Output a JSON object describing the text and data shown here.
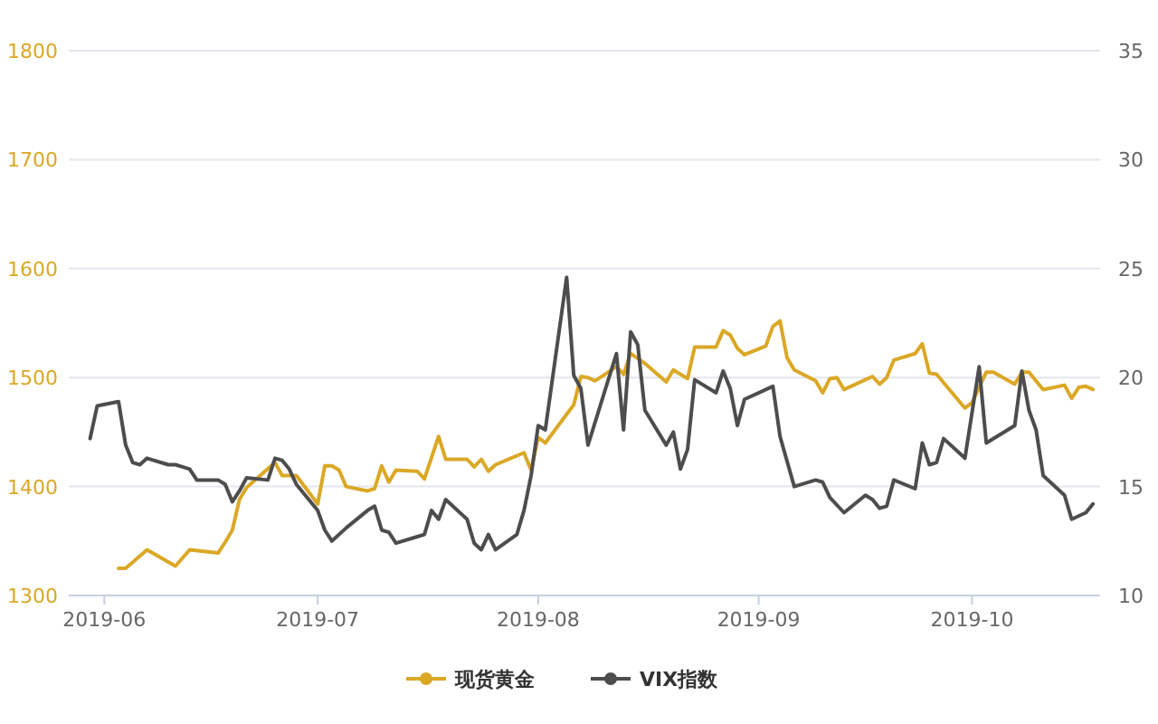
{
  "chart_data": {
    "type": "line",
    "xlim": [
      "2019-05-27",
      "2019-10-19"
    ],
    "xticks": [
      "2019-06",
      "2019-07",
      "2019-08",
      "2019-09",
      "2019-10"
    ],
    "ylim": [
      1300,
      1800
    ],
    "yticks": [
      1300,
      1400,
      1500,
      1600,
      1700,
      1800
    ],
    "y2lim": [
      10,
      35
    ],
    "y2ticks": [
      10,
      15,
      20,
      25,
      30,
      35
    ],
    "grid": "y",
    "legend": "bottom",
    "series": [
      {
        "name": "现货黄金",
        "color": "#dba826",
        "x": [
          "2019-06-03",
          "2019-06-04",
          "2019-06-07",
          "2019-06-11",
          "2019-06-13",
          "2019-06-17",
          "2019-06-18",
          "2019-06-19",
          "2019-06-20",
          "2019-06-21",
          "2019-06-25",
          "2019-06-26",
          "2019-06-28",
          "2019-07-01",
          "2019-07-02",
          "2019-07-03",
          "2019-07-04",
          "2019-07-05",
          "2019-07-08",
          "2019-07-09",
          "2019-07-10",
          "2019-07-11",
          "2019-07-12",
          "2019-07-15",
          "2019-07-16",
          "2019-07-18",
          "2019-07-19",
          "2019-07-22",
          "2019-07-23",
          "2019-07-24",
          "2019-07-25",
          "2019-07-26",
          "2019-07-30",
          "2019-07-31",
          "2019-08-01",
          "2019-08-02",
          "2019-08-06",
          "2019-08-07",
          "2019-08-08",
          "2019-08-09",
          "2019-08-12",
          "2019-08-13",
          "2019-08-14",
          "2019-08-16",
          "2019-08-19",
          "2019-08-20",
          "2019-08-22",
          "2019-08-23",
          "2019-08-26",
          "2019-08-27",
          "2019-08-28",
          "2019-08-29",
          "2019-08-30",
          "2019-09-02",
          "2019-09-03",
          "2019-09-04",
          "2019-09-05",
          "2019-09-06",
          "2019-09-09",
          "2019-09-10",
          "2019-09-11",
          "2019-09-12",
          "2019-09-13",
          "2019-09-17",
          "2019-09-18",
          "2019-09-19",
          "2019-09-20",
          "2019-09-23",
          "2019-09-24",
          "2019-09-25",
          "2019-09-26",
          "2019-09-30",
          "2019-10-01",
          "2019-10-03",
          "2019-10-04",
          "2019-10-07",
          "2019-10-08",
          "2019-10-09",
          "2019-10-11",
          "2019-10-14",
          "2019-10-15",
          "2019-10-16",
          "2019-10-17",
          "2019-10-18"
        ],
        "values": [
          1325,
          1325,
          1342,
          1327,
          1342,
          1339,
          1349,
          1360,
          1388,
          1399,
          1422,
          1410,
          1410,
          1384,
          1419,
          1419,
          1415,
          1400,
          1396,
          1398,
          1419,
          1404,
          1415,
          1414,
          1407,
          1446,
          1425,
          1425,
          1418,
          1425,
          1414,
          1420,
          1431,
          1415,
          1445,
          1440,
          1475,
          1501,
          1500,
          1497,
          1510,
          1503,
          1522,
          1513,
          1496,
          1507,
          1499,
          1528,
          1528,
          1543,
          1539,
          1527,
          1521,
          1529,
          1547,
          1552,
          1518,
          1507,
          1497,
          1486,
          1499,
          1500,
          1489,
          1501,
          1494,
          1500,
          1516,
          1522,
          1531,
          1504,
          1503,
          1472,
          1477,
          1505,
          1505,
          1494,
          1505,
          1505,
          1489,
          1493,
          1481,
          1491,
          1492,
          1489
        ]
      },
      {
        "name": "VIX指数",
        "color": "#4d4d4d",
        "axis": "y2",
        "x": [
          "2019-05-30",
          "2019-05-31",
          "2019-06-03",
          "2019-06-04",
          "2019-06-05",
          "2019-06-06",
          "2019-06-07",
          "2019-06-10",
          "2019-06-11",
          "2019-06-12",
          "2019-06-13",
          "2019-06-14",
          "2019-06-17",
          "2019-06-18",
          "2019-06-19",
          "2019-06-20",
          "2019-06-21",
          "2019-06-24",
          "2019-06-25",
          "2019-06-26",
          "2019-06-27",
          "2019-06-28",
          "2019-07-01",
          "2019-07-02",
          "2019-07-03",
          "2019-07-05",
          "2019-07-08",
          "2019-07-09",
          "2019-07-10",
          "2019-07-11",
          "2019-07-12",
          "2019-07-15",
          "2019-07-16",
          "2019-07-17",
          "2019-07-18",
          "2019-07-19",
          "2019-07-22",
          "2019-07-23",
          "2019-07-24",
          "2019-07-25",
          "2019-07-26",
          "2019-07-29",
          "2019-07-30",
          "2019-07-31",
          "2019-08-01",
          "2019-08-02",
          "2019-08-05",
          "2019-08-06",
          "2019-08-07",
          "2019-08-08",
          "2019-08-12",
          "2019-08-13",
          "2019-08-14",
          "2019-08-15",
          "2019-08-16",
          "2019-08-19",
          "2019-08-20",
          "2019-08-21",
          "2019-08-22",
          "2019-08-23",
          "2019-08-26",
          "2019-08-27",
          "2019-08-28",
          "2019-08-29",
          "2019-08-30",
          "2019-09-03",
          "2019-09-04",
          "2019-09-06",
          "2019-09-09",
          "2019-09-10",
          "2019-09-11",
          "2019-09-13",
          "2019-09-16",
          "2019-09-17",
          "2019-09-18",
          "2019-09-19",
          "2019-09-20",
          "2019-09-23",
          "2019-09-24",
          "2019-09-25",
          "2019-09-26",
          "2019-09-27",
          "2019-09-30",
          "2019-10-02",
          "2019-10-03",
          "2019-10-07",
          "2019-10-08",
          "2019-10-09",
          "2019-10-10",
          "2019-10-11",
          "2019-10-14",
          "2019-10-15",
          "2019-10-17",
          "2019-10-18"
        ],
        "values": [
          17.2,
          18.7,
          18.9,
          16.9,
          16.1,
          16.0,
          16.3,
          16.0,
          16.0,
          15.9,
          15.8,
          15.3,
          15.3,
          15.1,
          14.3,
          14.8,
          15.4,
          15.3,
          16.3,
          16.2,
          15.8,
          15.1,
          13.9,
          13.0,
          12.5,
          13.1,
          13.9,
          14.1,
          13.0,
          12.9,
          12.4,
          12.7,
          12.8,
          13.9,
          13.5,
          14.4,
          13.5,
          12.4,
          12.1,
          12.8,
          12.1,
          12.8,
          13.9,
          15.5,
          17.8,
          17.6,
          24.6,
          20.1,
          19.5,
          16.9,
          21.1,
          17.6,
          22.1,
          21.5,
          18.5,
          16.9,
          17.5,
          15.8,
          16.7,
          19.9,
          19.3,
          20.3,
          19.5,
          17.8,
          19.0,
          19.6,
          17.3,
          15.0,
          15.3,
          15.2,
          14.5,
          13.8,
          14.6,
          14.4,
          14.0,
          14.1,
          15.3,
          14.9,
          17.0,
          16.0,
          16.1,
          17.2,
          16.3,
          20.5,
          17.0,
          17.8,
          20.3,
          18.5,
          17.6,
          15.5,
          14.6,
          13.5,
          13.8,
          14.2
        ]
      }
    ]
  }
}
